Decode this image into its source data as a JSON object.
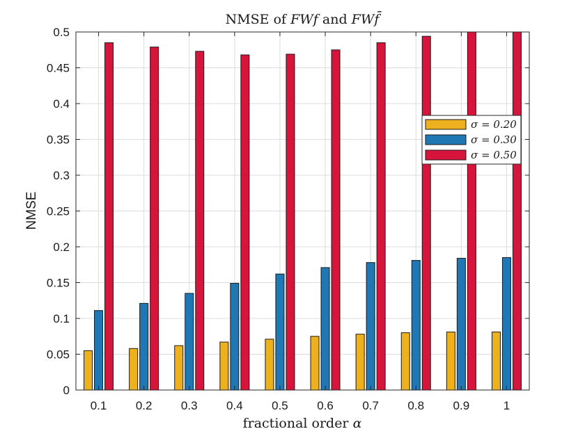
{
  "chart_data": {
    "type": "bar",
    "title": "NMSE of FWf and FWf̄",
    "title_parts": {
      "prefix": "NMSE of ",
      "expr1": "FWf",
      "connector": " and ",
      "expr2": "FWf̄"
    },
    "xlabel": "fractional order α",
    "xlabel_parts": {
      "text": "fractional order ",
      "symbol": "α"
    },
    "ylabel": "NMSE",
    "categories": [
      "0.1",
      "0.2",
      "0.3",
      "0.4",
      "0.5",
      "0.6",
      "0.7",
      "0.8",
      "0.9",
      "1"
    ],
    "yticks": [
      "0",
      "0.05",
      "0.1",
      "0.15",
      "0.2",
      "0.25",
      "0.3",
      "0.35",
      "0.4",
      "0.45",
      "0.5"
    ],
    "ylim": [
      0,
      0.5
    ],
    "grid": true,
    "legend_position": "right",
    "series": [
      {
        "name": "σ = 0.20",
        "color": "#EDB120",
        "values": [
          0.055,
          0.058,
          0.062,
          0.067,
          0.071,
          0.075,
          0.078,
          0.08,
          0.081,
          0.081
        ]
      },
      {
        "name": "σ = 0.30",
        "color": "#1F77B4",
        "values": [
          0.111,
          0.121,
          0.135,
          0.149,
          0.162,
          0.171,
          0.178,
          0.181,
          0.184,
          0.185
        ]
      },
      {
        "name": "σ = 0.50",
        "color": "#D7153C",
        "values": [
          0.485,
          0.479,
          0.473,
          0.468,
          0.469,
          0.475,
          0.485,
          0.494,
          0.5,
          0.5
        ]
      }
    ]
  }
}
